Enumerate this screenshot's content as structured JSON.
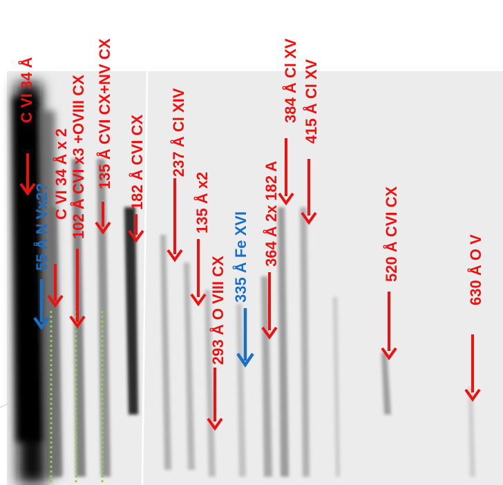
{
  "colors": {
    "red_annotation": "#ee1111",
    "blue_annotation": "#1a6fc4",
    "green_marker": "#8fd14a",
    "plate_background": "#ebebeb",
    "line_dark": "#000000"
  },
  "labels": {
    "c6_34": "C VI 34 Å",
    "c6_34x2": "C VI 34 Å x 2",
    "n5_55": "55 Å N Vx2?",
    "c6_102": "102 Å CVI x3 +OVIII CX",
    "c6_135": "135 Å CVI CX+NV CX",
    "c6_182": "182 Å CVI CX",
    "cl14_237": "237 Å Cl XIV",
    "x2_135": "135 Å x2",
    "o8_293": "293 Å O VIII CX",
    "fe16_335": "335 Å Fe XVI",
    "a364": "364 Å 2x 182 A",
    "cl15_384": "384 Å Cl XV",
    "cl15_415": "415 Å Cl XV",
    "c6_520": "520 Å CVI CX",
    "o5_630": "630 Å O V"
  }
}
